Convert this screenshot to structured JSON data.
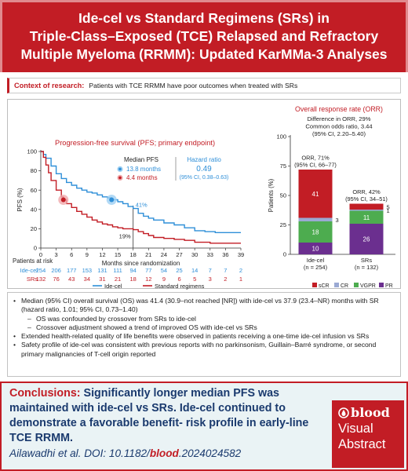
{
  "header": {
    "title": "Ide-cel vs Standard Regimens (SRs) in\nTriple-Class–Exposed (TCE) Relapsed and Refractory\nMultiple Myeloma (RRMM): Updated KarMMa-3 Analyses"
  },
  "context": {
    "label": "Context of research:",
    "text": "Patients with TCE RRMM have poor outcomes when treated with SRs"
  },
  "colors": {
    "brand_red": "#c21d25",
    "idecel_blue": "#2f8fd8",
    "sr_red": "#c21d25",
    "scr": "#c21d25",
    "cr": "#9aa9d3",
    "vgpr": "#4dac4f",
    "pr": "#6b2f8f"
  },
  "chart_data": [
    {
      "type": "line",
      "title": "Progression-free survival (PFS; primary endpoint)",
      "xlabel": "Months since randomization",
      "ylabel": "PFS (%)",
      "xlim": [
        0,
        39
      ],
      "ylim": [
        0,
        100
      ],
      "x_ticks": [
        0,
        3,
        6,
        9,
        12,
        15,
        18,
        21,
        24,
        27,
        30,
        33,
        36,
        39
      ],
      "y_ticks": [
        0,
        20,
        40,
        60,
        80,
        100
      ],
      "median_header": "Median PFS",
      "hr_header": "Hazard ratio",
      "hr_value": "0.49",
      "hr_ci": "(95% CI, 0.38–0.63)",
      "annotations": {
        "idecel_18mo": "41%",
        "sr_18mo": "19%"
      },
      "series": [
        {
          "name": "Ide-cel",
          "color": "#2f8fd8",
          "median_label": "13.8 months",
          "median_x": 13.8,
          "x": [
            0,
            0.5,
            1,
            2,
            3,
            4,
            5,
            6,
            7,
            8,
            9,
            10,
            11,
            12,
            13,
            13.8,
            15,
            16,
            17,
            18,
            19,
            20,
            21,
            22,
            24,
            26,
            28,
            30,
            32,
            34,
            36,
            39
          ],
          "y": [
            100,
            97,
            93,
            85,
            77,
            72,
            68,
            65,
            62,
            60,
            58,
            57,
            55,
            53,
            52,
            50,
            48,
            46,
            43,
            41,
            36,
            33,
            31,
            29,
            26,
            24,
            21,
            18,
            17,
            16,
            16,
            16
          ]
        },
        {
          "name": "Standard regimens",
          "color": "#c21d25",
          "median_label": "4.4 months",
          "median_x": 4.4,
          "x": [
            0,
            0.5,
            1,
            1.5,
            2,
            3,
            4,
            4.4,
            5,
            6,
            7,
            8,
            9,
            10,
            11,
            12,
            13,
            14,
            15,
            16,
            17,
            18,
            19,
            20,
            21,
            22,
            24,
            26,
            28,
            30,
            33,
            36,
            39
          ],
          "y": [
            100,
            94,
            86,
            78,
            70,
            60,
            53,
            50,
            46,
            42,
            38,
            35,
            32,
            29,
            27,
            25,
            24,
            22,
            21,
            20,
            20,
            19,
            17,
            15,
            13,
            11,
            10,
            9,
            8,
            6,
            5,
            5,
            5
          ]
        }
      ],
      "at_risk": {
        "label": "Patients at risk",
        "rows": [
          {
            "name": "Ide-cel",
            "values": [
              "254",
              "206",
              "177",
              "153",
              "131",
              "111",
              "94",
              "77",
              "54",
              "25",
              "14",
              "7",
              "7",
              "2"
            ]
          },
          {
            "name": "SRs",
            "values": [
              "132",
              "76",
              "43",
              "34",
              "31",
              "21",
              "18",
              "12",
              "9",
              "6",
              "5",
              "3",
              "2",
              "1"
            ]
          }
        ]
      }
    },
    {
      "type": "bar",
      "title": "Overall response rate (ORR)",
      "ylabel": "Patients (%)",
      "ylim": [
        0,
        100
      ],
      "y_ticks": [
        0,
        25,
        50,
        75,
        100
      ],
      "difference_text": [
        "Difference in ORR, 29%",
        "Common odds ratio, 3.44",
        "(95% CI, 2.20–5.40)"
      ],
      "categories": [
        "Ide-cel",
        "SRs"
      ],
      "category_sublabels": [
        "(n = 254)",
        "(n = 132)"
      ],
      "orr_labels": [
        [
          "ORR, 71%",
          "(95% CI, 66–77)"
        ],
        [
          "ORR, 42%",
          "(95% CI, 34–51)"
        ]
      ],
      "totals": [
        71,
        42
      ],
      "series": [
        {
          "name": "PR",
          "values": [
            10,
            26
          ],
          "color": "#6b2f8f"
        },
        {
          "name": "VGPR",
          "values": [
            18,
            11
          ],
          "color": "#4dac4f"
        },
        {
          "name": "CR",
          "values": [
            3,
            1
          ],
          "color": "#9aa9d3"
        },
        {
          "name": "sCR",
          "values": [
            41,
            5
          ],
          "color": "#c21d25"
        }
      ],
      "legend_order": [
        "sCR",
        "CR",
        "VGPR",
        "PR"
      ]
    }
  ],
  "bullets": [
    {
      "level": 1,
      "text": "Median (95% CI) overall survival (OS) was 41.4 (30.9–not reached [NR]) with ide-cel vs 37.9 (23.4–NR) months with SR (hazard ratio, 1.01; 95% CI, 0.73–1.40)"
    },
    {
      "level": 2,
      "text": "OS was confounded by crossover from SRs to ide-cel"
    },
    {
      "level": 2,
      "text": "Crossover adjustment showed a trend of improved OS with ide-cel vs SRs"
    },
    {
      "level": 1,
      "text": "Extended health-related quality of life benefits were observed in patients receiving a one-time ide-cel infusion vs SRs"
    },
    {
      "level": 1,
      "text": "Safety profile of ide-cel was consistent with previous reports with no parkinsonism, Guillain–Barré syndrome, or second primary malignancies of T-cell origin reported"
    }
  ],
  "conclusions": {
    "label": "Conclusions:",
    "text": "Significantly longer median PFS was maintained with ide-cel vs SRs. Ide-cel continued to demonstrate a favorable benefit- risk profile in early-line TCE RRMM."
  },
  "citation": {
    "authors": "Ailawadhi et al. DOI: 10.1182/",
    "journal": "blood",
    "doi_suffix": ".2024024582"
  },
  "badge": {
    "brand": "blood",
    "line1": "Visual",
    "line2": "Abstract"
  }
}
